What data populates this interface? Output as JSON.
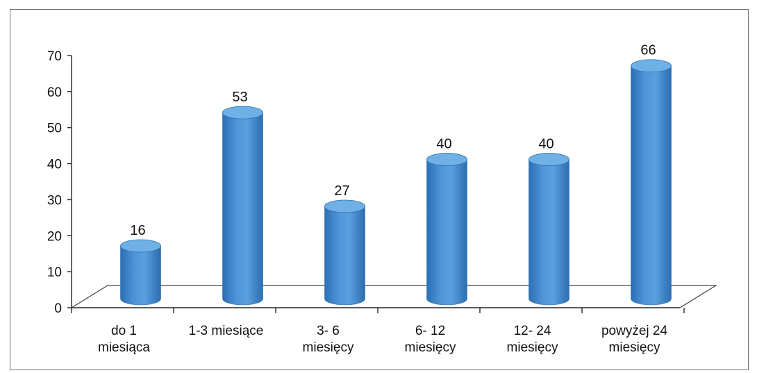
{
  "chart_data": {
    "type": "bar",
    "style": "3d-cylinder",
    "categories": [
      [
        "do 1",
        "miesiąca"
      ],
      [
        "1-3 miesiące"
      ],
      [
        "3- 6",
        "miesięcy"
      ],
      [
        "6- 12",
        "miesięcy"
      ],
      [
        "12- 24",
        "miesięcy"
      ],
      [
        "powyżej 24",
        "miesięcy"
      ]
    ],
    "values": [
      16,
      53,
      27,
      40,
      40,
      66
    ],
    "ylim": [
      0,
      70
    ],
    "yticks": [
      0,
      10,
      20,
      30,
      40,
      50,
      60,
      70
    ],
    "data_labels": true,
    "grid": false,
    "legend": "none",
    "colors": {
      "bar_body": "#4a8fd2",
      "bar_top": "#6fb0e6",
      "bar_edge": "#2f6fae",
      "axis": "#333333",
      "floor": "#444444"
    }
  }
}
